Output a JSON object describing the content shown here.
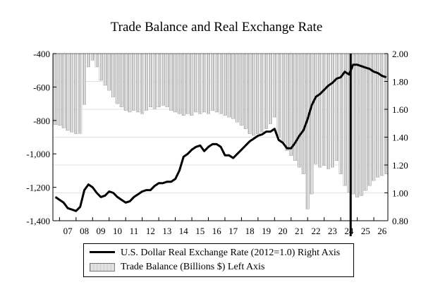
{
  "chart_data": {
    "type": "bar+line",
    "title": "Trade Balance and Real Exchange Rate",
    "x_tick_labels": [
      "07",
      "08",
      "09",
      "10",
      "11",
      "12",
      "13",
      "14",
      "15",
      "16",
      "17",
      "18",
      "19",
      "20",
      "21",
      "22",
      "23",
      "24",
      "25",
      "26"
    ],
    "left_axis": {
      "ylim": [
        -1400,
        -400
      ],
      "tick_labels": [
        "-400",
        "-600",
        "-800",
        "-1,000",
        "-1,200",
        "-1,400"
      ],
      "ticks": [
        -400,
        -600,
        -800,
        -1000,
        -1200,
        -1400
      ]
    },
    "right_axis": {
      "ylim": [
        0.8,
        2.0
      ],
      "tick_labels": [
        "2.00",
        "1.80",
        "1.60",
        "1.40",
        "1.20",
        "1.00",
        "0.80"
      ],
      "ticks": [
        2.0,
        1.8,
        1.6,
        1.4,
        1.2,
        1.0,
        0.8
      ]
    },
    "x_start": 2006.6,
    "x_end": 2026.85,
    "vertical_marker_x": 2024.6,
    "bar_color": "#bbbbbb",
    "line_color": "#000000",
    "series": [
      {
        "name": "Trade Balance (Billions $) Left Axis",
        "axis": "left",
        "x": [
          2006.75,
          2007.0,
          2007.25,
          2007.5,
          2007.75,
          2008.0,
          2008.25,
          2008.5,
          2008.75,
          2009.0,
          2009.25,
          2009.5,
          2009.75,
          2010.0,
          2010.25,
          2010.5,
          2010.75,
          2011.0,
          2011.25,
          2011.5,
          2011.75,
          2012.0,
          2012.25,
          2012.5,
          2012.75,
          2013.0,
          2013.25,
          2013.5,
          2013.75,
          2014.0,
          2014.25,
          2014.5,
          2014.75,
          2015.0,
          2015.25,
          2015.5,
          2015.75,
          2016.0,
          2016.25,
          2016.5,
          2016.75,
          2017.0,
          2017.25,
          2017.5,
          2017.75,
          2018.0,
          2018.25,
          2018.5,
          2018.75,
          2019.0,
          2019.25,
          2019.5,
          2019.75,
          2020.0,
          2020.25,
          2020.5,
          2020.75,
          2021.0,
          2021.25,
          2021.5,
          2021.75,
          2022.0,
          2022.25,
          2022.5,
          2022.75,
          2023.0,
          2023.25,
          2023.5,
          2023.75,
          2024.0,
          2024.25,
          2024.5,
          2024.75,
          2025.0,
          2025.25,
          2025.5,
          2025.75,
          2026.0,
          2026.25,
          2026.5,
          2026.75
        ],
        "values": [
          -825,
          -830,
          -845,
          -860,
          -870,
          -880,
          -878,
          -705,
          -480,
          -440,
          -480,
          -560,
          -590,
          -620,
          -660,
          -700,
          -720,
          -740,
          -750,
          -740,
          -750,
          -760,
          -740,
          -720,
          -730,
          -720,
          -710,
          -720,
          -740,
          -750,
          -760,
          -770,
          -760,
          -770,
          -750,
          -760,
          -750,
          -760,
          -740,
          -750,
          -760,
          -770,
          -780,
          -790,
          -810,
          -830,
          -850,
          -880,
          -890,
          -880,
          -870,
          -850,
          -820,
          -780,
          -900,
          -930,
          -980,
          -1010,
          -1040,
          -1080,
          -1120,
          -1330,
          -1240,
          -1060,
          -1080,
          -1070,
          -1090,
          -1080,
          -1040,
          -1120,
          -1190,
          -1230,
          -1240,
          -1260,
          -1250,
          -1220,
          -1190,
          -1160,
          -1140,
          -1130,
          -1120
        ]
      },
      {
        "name": "U.S. Dollar Real Exchange Rate (2012=1.0) Right Axis",
        "axis": "right",
        "x": [
          2006.75,
          2007.0,
          2007.25,
          2007.5,
          2007.75,
          2008.0,
          2008.25,
          2008.5,
          2008.75,
          2009.0,
          2009.25,
          2009.5,
          2009.75,
          2010.0,
          2010.25,
          2010.5,
          2010.75,
          2011.0,
          2011.25,
          2011.5,
          2011.75,
          2012.0,
          2012.25,
          2012.5,
          2012.75,
          2013.0,
          2013.25,
          2013.5,
          2013.75,
          2014.0,
          2014.25,
          2014.5,
          2014.75,
          2015.0,
          2015.25,
          2015.5,
          2015.75,
          2016.0,
          2016.25,
          2016.5,
          2016.75,
          2017.0,
          2017.25,
          2017.5,
          2017.75,
          2018.0,
          2018.25,
          2018.5,
          2018.75,
          2019.0,
          2019.25,
          2019.5,
          2019.75,
          2020.0,
          2020.25,
          2020.5,
          2020.75,
          2021.0,
          2021.25,
          2021.5,
          2021.75,
          2022.0,
          2022.25,
          2022.5,
          2022.75,
          2023.0,
          2023.25,
          2023.5,
          2023.75,
          2024.0,
          2024.25,
          2024.5,
          2024.75,
          2025.0,
          2025.25,
          2025.5,
          2025.75,
          2026.0,
          2026.25,
          2026.5,
          2026.75
        ],
        "values": [
          0.97,
          0.95,
          0.93,
          0.89,
          0.88,
          0.87,
          0.9,
          1.02,
          1.06,
          1.04,
          1.0,
          0.97,
          0.98,
          1.01,
          1.0,
          0.97,
          0.95,
          0.93,
          0.94,
          0.97,
          0.99,
          1.01,
          1.02,
          1.02,
          1.05,
          1.07,
          1.07,
          1.08,
          1.08,
          1.1,
          1.16,
          1.26,
          1.28,
          1.31,
          1.33,
          1.34,
          1.3,
          1.33,
          1.35,
          1.35,
          1.33,
          1.27,
          1.27,
          1.25,
          1.28,
          1.31,
          1.34,
          1.37,
          1.39,
          1.41,
          1.42,
          1.44,
          1.44,
          1.46,
          1.38,
          1.36,
          1.32,
          1.32,
          1.36,
          1.41,
          1.45,
          1.53,
          1.63,
          1.69,
          1.71,
          1.74,
          1.77,
          1.79,
          1.82,
          1.83,
          1.87,
          1.85,
          1.92,
          1.92,
          1.91,
          1.9,
          1.89,
          1.87,
          1.86,
          1.84,
          1.83
        ]
      }
    ],
    "legend": [
      {
        "label": "U.S. Dollar Real Exchange Rate (2012=1.0) Right Axis",
        "kind": "line"
      },
      {
        "label": "Trade Balance (Billions $) Left Axis",
        "kind": "bar"
      }
    ],
    "legend_placement": "bottom"
  }
}
